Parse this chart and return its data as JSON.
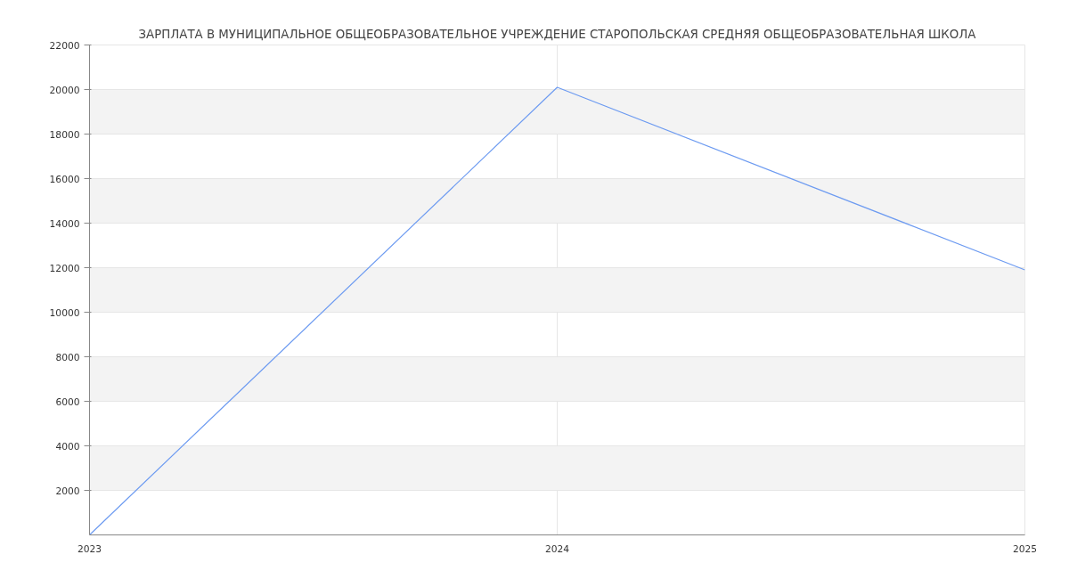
{
  "chart_data": {
    "type": "line",
    "title": "ЗАРПЛАТА В МУНИЦИПАЛЬНОЕ ОБЩЕОБРАЗОВАТЕЛЬНОЕ УЧРЕЖДЕНИЕ СТАРОПОЛЬСКАЯ СРЕДНЯЯ ОБЩЕОБРАЗОВАТЕЛЬНАЯ ШКОЛА",
    "x": [
      2023,
      2024,
      2025
    ],
    "series": [
      {
        "color": "#6d9bf1",
        "values": [
          0,
          20100,
          11900
        ]
      }
    ],
    "xlim": [
      2023,
      2025
    ],
    "xticks": [
      2023,
      2024,
      2025
    ],
    "ylim": [
      0,
      22000
    ],
    "yticks": [
      2000,
      4000,
      6000,
      8000,
      10000,
      12000,
      14000,
      16000,
      18000,
      20000,
      22000
    ],
    "grid": true,
    "marker": "none",
    "line_style": "solid"
  }
}
